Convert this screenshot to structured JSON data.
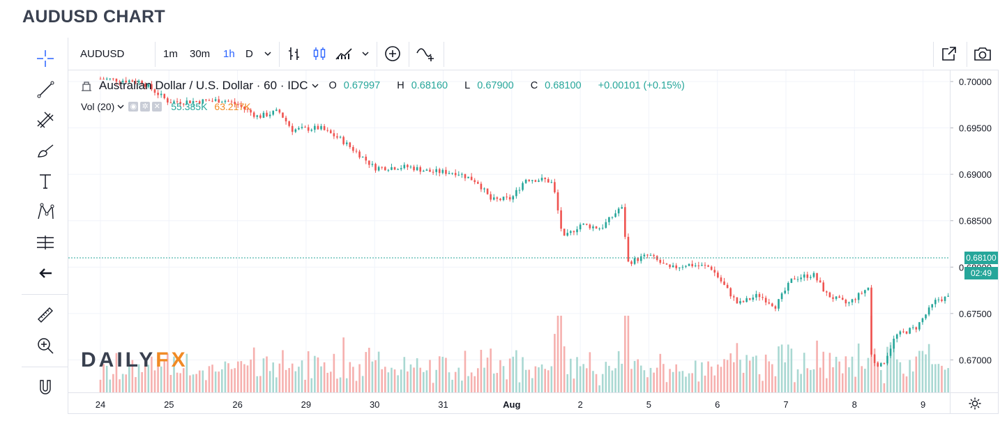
{
  "page": {
    "title": "AUDUSD CHART"
  },
  "toolbar": {
    "symbol": "AUDUSD",
    "intervals": [
      {
        "label": "1m",
        "active": false
      },
      {
        "label": "30m",
        "active": false
      },
      {
        "label": "1h",
        "active": true
      },
      {
        "label": "D",
        "active": false
      }
    ],
    "interval_menu_icon": "chevron-down-icon",
    "bar_style_icon": "bars-icon",
    "candle_style_icon": "candles-icon",
    "indicators_icon": "indicators-icon",
    "add_compare_icon": "plus-circle-icon",
    "alert_icon": "add-line-icon",
    "popout_icon": "popout-icon",
    "snapshot_icon": "camera-icon"
  },
  "left_tools": [
    "crosshair-icon",
    "trend-line-icon",
    "fib-icon",
    "brush-icon",
    "text-icon",
    "pattern-icon",
    "measure-icon",
    "back-arrow-icon",
    "ruler-icon",
    "zoom-icon",
    "magnet-icon"
  ],
  "legend": {
    "symbol_title": "Australian Dollar / U.S. Dollar · 60 · IDC",
    "open_label": "O",
    "open": "0.67997",
    "high_label": "H",
    "high": "0.68160",
    "low_label": "L",
    "low": "0.67900",
    "close_label": "C",
    "close": "0.68100",
    "change": "+0.00101 (+0.15%)"
  },
  "volume_legend": {
    "label": "Vol (20)",
    "value_1": "55.385K",
    "value_2": "63.217K"
  },
  "logo": {
    "part1": "DAILY",
    "part2": "FX"
  },
  "price_axis": {
    "current_price": "0.68100",
    "countdown": "02:49"
  },
  "colors": {
    "up": "#26a69a",
    "down": "#ef5350",
    "vol_up": "#a9d8d2",
    "vol_down": "#f6b0ae",
    "grid": "#f0f3fa",
    "accent": "#2962ff"
  },
  "chart_data": {
    "type": "candlestick",
    "symbol": "AUDUSD",
    "title": "Australian Dollar / U.S. Dollar",
    "interval": "60",
    "x_tick_labels": [
      "24",
      "25",
      "26",
      "29",
      "30",
      "31",
      "Aug",
      "2",
      "5",
      "6",
      "7",
      "8",
      "9"
    ],
    "y_tick_labels": [
      "0.70000",
      "0.69500",
      "0.69000",
      "0.68500",
      "0.68000",
      "0.67500",
      "0.67000"
    ],
    "y_ticks": [
      0.7,
      0.695,
      0.69,
      0.685,
      0.68,
      0.675,
      0.67
    ],
    "ylim": [
      0.6665,
      0.7012
    ],
    "close_path": [
      [
        0,
        0.7003
      ],
      [
        0.6,
        0.7
      ],
      [
        1.0,
        0.6978
      ],
      [
        1.5,
        0.6979
      ],
      [
        1.8,
        0.698
      ],
      [
        2.0,
        0.6975
      ],
      [
        2.3,
        0.6962
      ],
      [
        2.6,
        0.6968
      ],
      [
        2.8,
        0.6948
      ],
      [
        3.2,
        0.695
      ],
      [
        3.5,
        0.6938
      ],
      [
        3.8,
        0.692
      ],
      [
        4.0,
        0.6907
      ],
      [
        4.5,
        0.6908
      ],
      [
        4.8,
        0.6903
      ],
      [
        5.2,
        0.6902
      ],
      [
        5.5,
        0.6892
      ],
      [
        5.7,
        0.6872
      ],
      [
        6.0,
        0.6874
      ],
      [
        6.2,
        0.6895
      ],
      [
        6.5,
        0.6894
      ],
      [
        6.6,
        0.689
      ],
      [
        6.75,
        0.683
      ],
      [
        7.0,
        0.6846
      ],
      [
        7.3,
        0.6842
      ],
      [
        7.5,
        0.6857
      ],
      [
        7.6,
        0.6867
      ],
      [
        7.7,
        0.6805
      ],
      [
        8.0,
        0.6813
      ],
      [
        8.3,
        0.6798
      ],
      [
        8.55,
        0.6803
      ],
      [
        8.9,
        0.68
      ],
      [
        9.1,
        0.678
      ],
      [
        9.3,
        0.676
      ],
      [
        9.6,
        0.677
      ],
      [
        9.85,
        0.6758
      ],
      [
        10.1,
        0.6788
      ],
      [
        10.4,
        0.6792
      ],
      [
        10.6,
        0.677
      ],
      [
        10.9,
        0.676
      ],
      [
        11.2,
        0.6778
      ],
      [
        11.25,
        0.67
      ],
      [
        11.4,
        0.6693
      ],
      [
        11.6,
        0.6726
      ],
      [
        11.9,
        0.6735
      ],
      [
        12.2,
        0.6765
      ],
      [
        12.5,
        0.6769
      ],
      [
        12.8,
        0.6788
      ],
      [
        13.2,
        0.68
      ],
      [
        13.5,
        0.6815
      ],
      [
        13.8,
        0.6805
      ],
      [
        13.85,
        0.679
      ],
      [
        14.0,
        0.681
      ]
    ],
    "volume": {
      "label": "Vol (20)",
      "last": "55.385K",
      "ma": "63.217K"
    },
    "last_price": "0.68100",
    "change": "+0.00101 (+0.15%)",
    "grid": true
  }
}
